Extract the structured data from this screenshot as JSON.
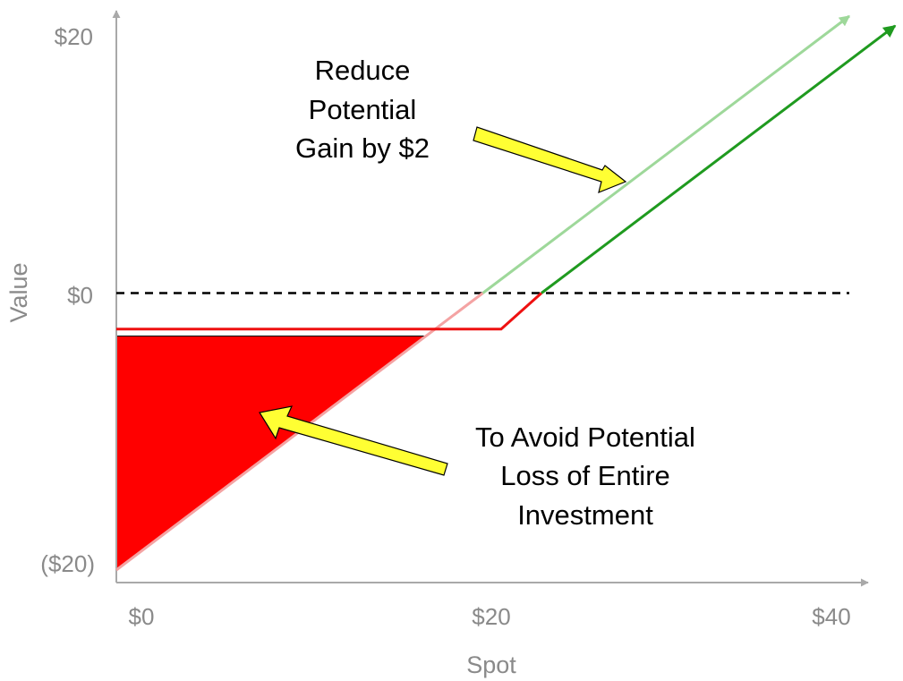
{
  "chart_data": {
    "type": "line",
    "xlabel": "Spot",
    "ylabel": "Value",
    "xlim": [
      0,
      40
    ],
    "ylim": [
      -20,
      20
    ],
    "x_ticks": [
      "$0",
      "$20",
      "$40"
    ],
    "y_ticks": [
      "$20",
      "$0",
      "($20)"
    ],
    "x_tick_values": [
      0,
      20,
      40
    ],
    "y_tick_values": [
      20,
      0,
      -20
    ],
    "grid": false,
    "legend": "none",
    "reference_lines": [
      {
        "axis": "y",
        "value": 0,
        "style": "dashed",
        "color": "#000000"
      }
    ],
    "series": [
      {
        "points": [
          [
            0,
            -20
          ],
          [
            20,
            0
          ],
          [
            40,
            20
          ]
        ],
        "colors": {
          "loss": "#f4a3a3",
          "gain": "#9ed89a"
        },
        "arrow_end": true
      },
      {
        "points": [
          [
            0,
            -2.6
          ],
          [
            21,
            -2.6
          ],
          [
            23.2,
            0
          ],
          [
            42.5,
            19.3
          ]
        ],
        "colors": {
          "loss": "#ee1111",
          "gain": "#1f9a1f"
        },
        "arrow_end": true
      }
    ],
    "shaded_regions": [
      {
        "points": [
          [
            0,
            -20
          ],
          [
            0,
            -3.1
          ],
          [
            16.9,
            -3.1
          ]
        ],
        "color": "#ff0000"
      }
    ],
    "annotations": [
      {
        "lines": [
          "Reduce",
          "Potential",
          "Gain by $2"
        ]
      },
      {
        "lines": [
          "To Avoid Potential",
          "Loss of Entire",
          "Investment"
        ]
      }
    ],
    "colors": {
      "axis": "#a9a9a9",
      "tick_text": "#8a8a8a",
      "arrow_fill": "#ffff33"
    }
  }
}
